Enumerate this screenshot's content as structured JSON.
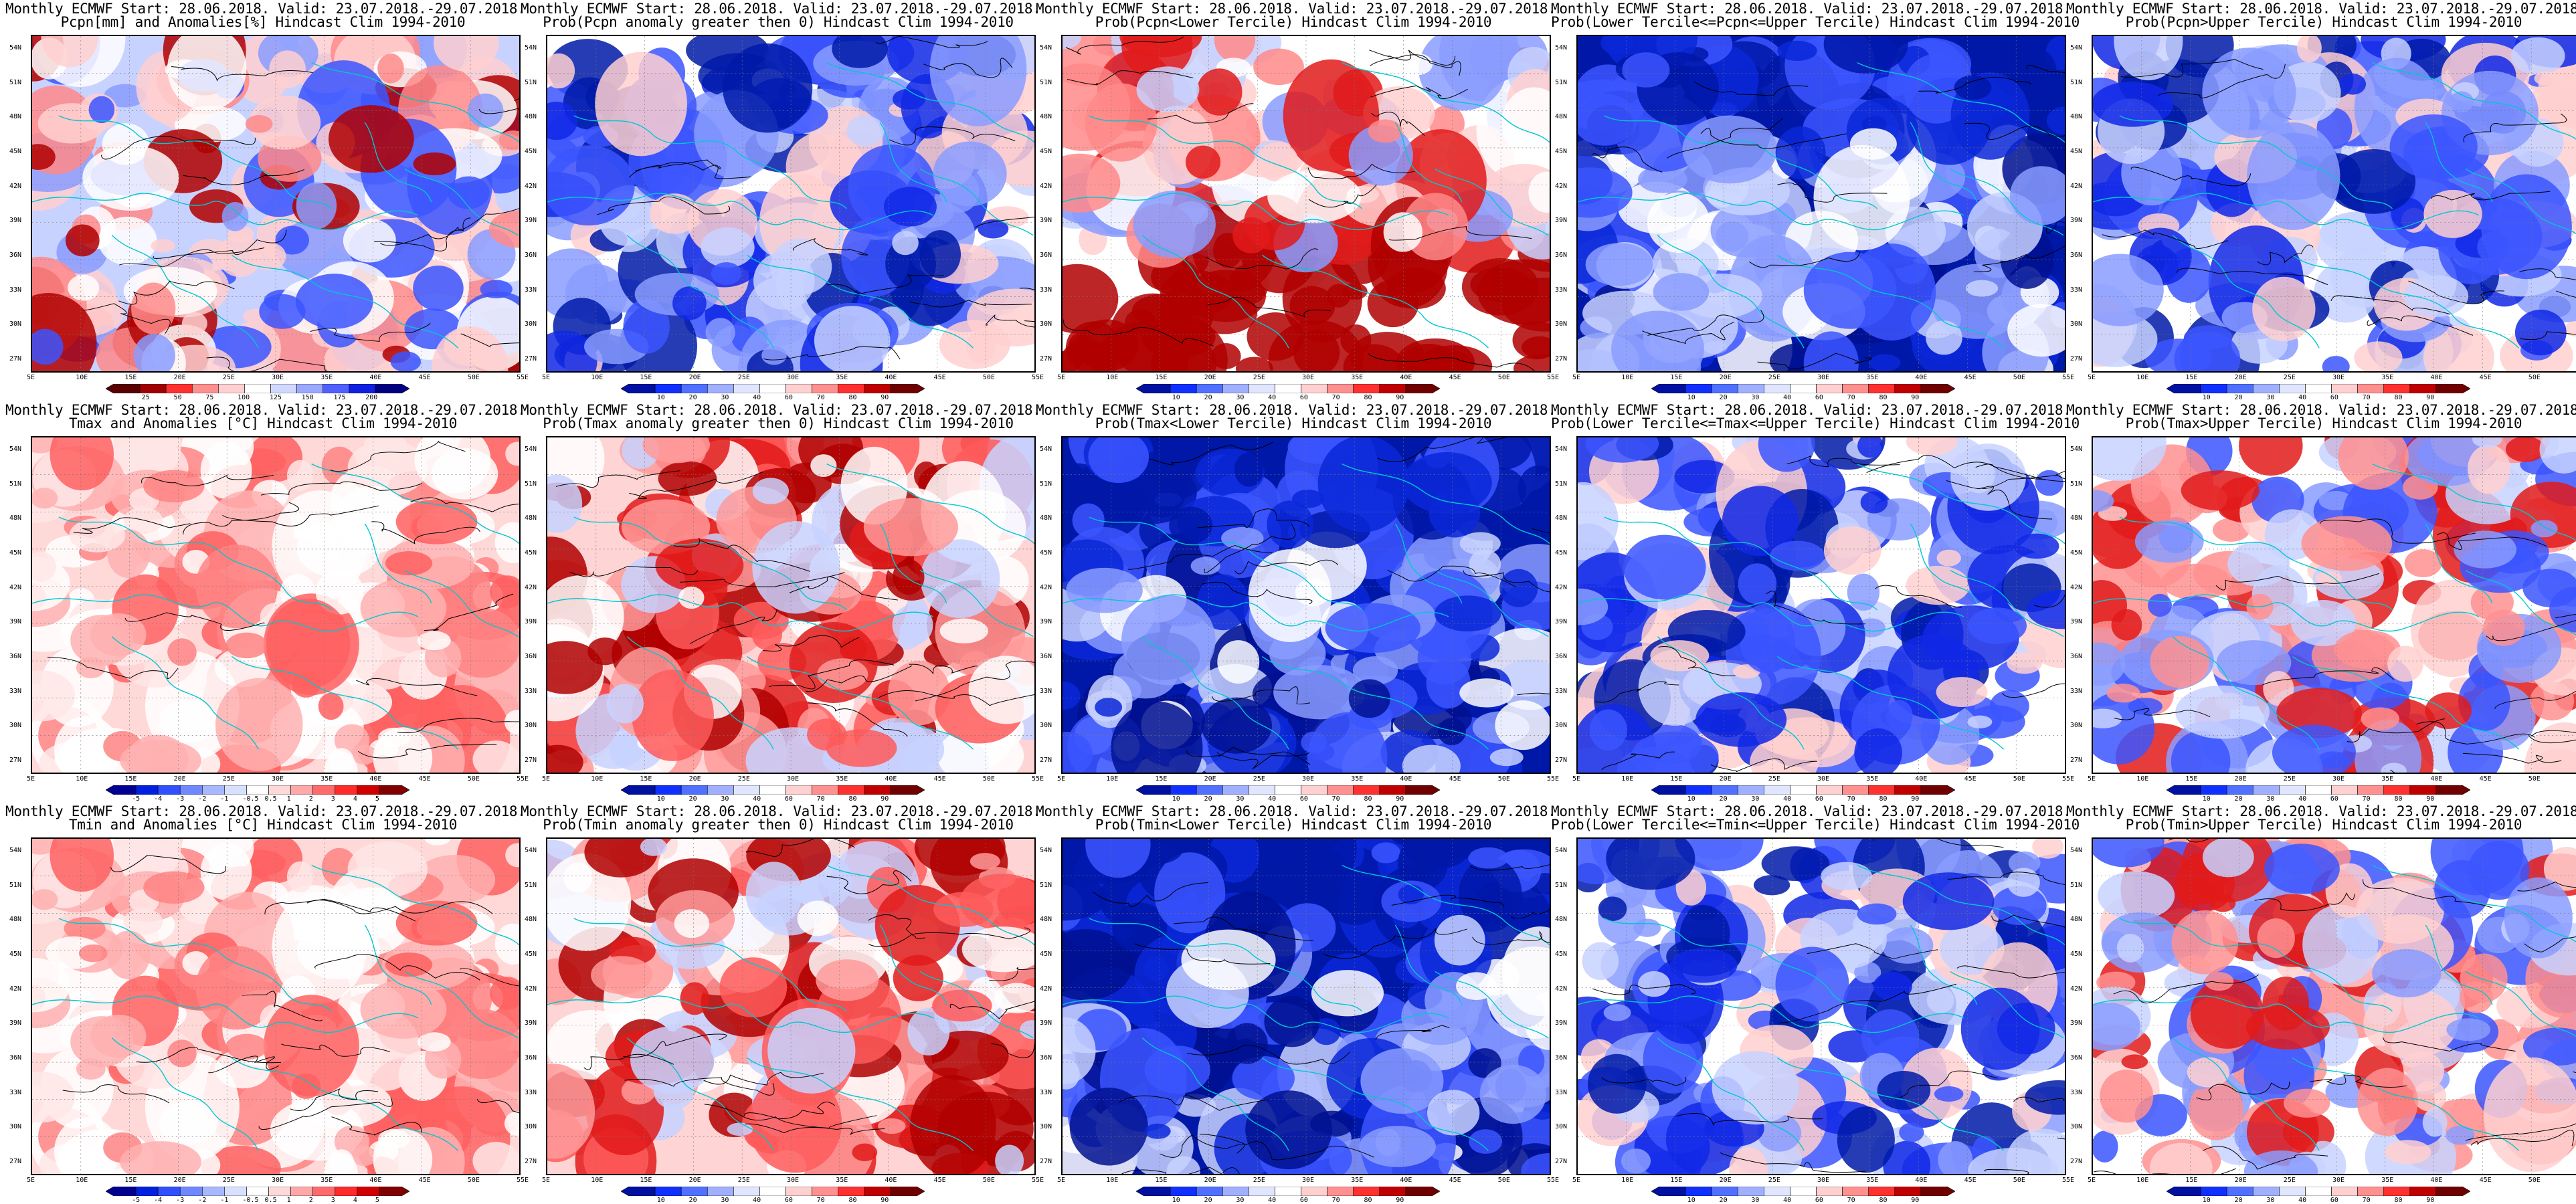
{
  "title_line1": {
    "pcpn": "Monthly ECMWF Start: 28.06.2018. Valid: 23.07.2018.-29.07.2018.",
    "tmax": "Monthly ECMWF Start: 28.06.2018. Valid: 23.07.2018.-29.07.2018.",
    "tmin": "Monthly ECMWF Start: 28.06.2018. Valid: 23.07.2018.-29.07.2018."
  },
  "panels": [
    {
      "title2": "Pcpn[mm] and Anomalies[%] Hindcast Clim 1994-2010",
      "base": "mixed",
      "scale": "pcpn"
    },
    {
      "title2": "Prob(Pcpn anomaly greater then 0) Hindcast Clim 1994-2010",
      "base": "blue",
      "scale": "prob"
    },
    {
      "title2": "Prob(Pcpn<Lower Tercile) Hindcast Clim 1994-2010",
      "base": "redsouth",
      "scale": "prob"
    },
    {
      "title2": "Prob(Lower Tercile<=Pcpn<=Upper Tercile) Hindcast Clim 1994-2010",
      "base": "deepblue",
      "scale": "prob"
    },
    {
      "title2": "Prob(Pcpn>Upper Tercile) Hindcast Clim 1994-2010",
      "base": "blue",
      "scale": "prob"
    },
    {
      "title2": "Tmax and Anomalies [°C] Hindcast Clim 1994-2010",
      "base": "redlight",
      "scale": "temp"
    },
    {
      "title2": "Prob(Tmax anomaly greater then 0) Hindcast Clim 1994-2010",
      "base": "red",
      "scale": "prob"
    },
    {
      "title2": "Prob(Tmax<Lower Tercile) Hindcast Clim 1994-2010",
      "base": "deepblue",
      "scale": "prob"
    },
    {
      "title2": "Prob(Lower Tercile<=Tmax<=Upper Tercile) Hindcast Clim 1994-2010",
      "base": "blue",
      "scale": "prob"
    },
    {
      "title2": "Prob(Tmax>Upper Tercile) Hindcast Clim 1994-2010",
      "base": "redblue",
      "scale": "prob"
    },
    {
      "title2": "Tmin and Anomalies [°C] Hindcast Clim 1994-2010",
      "base": "redlight",
      "scale": "temp"
    },
    {
      "title2": "Prob(Tmin anomaly greater then 0) Hindcast Clim 1994-2010",
      "base": "red",
      "scale": "prob"
    },
    {
      "title2": "Prob(Tmin<Lower Tercile) Hindcast Clim 1994-2010",
      "base": "deepblue",
      "scale": "prob"
    },
    {
      "title2": "Prob(Lower Tercile<=Tmin<=Upper Tercile) Hindcast Clim 1994-2010",
      "base": "blue",
      "scale": "prob"
    },
    {
      "title2": "Prob(Tmin>Upper Tercile) Hindcast Clim 1994-2010",
      "base": "redblue",
      "scale": "prob"
    }
  ],
  "lat_labels": [
    "54N",
    "51N",
    "48N",
    "45N",
    "42N",
    "39N",
    "36N",
    "33N",
    "30N",
    "27N"
  ],
  "lon_labels": [
    "5E",
    "10E",
    "15E",
    "20E",
    "25E",
    "30E",
    "35E",
    "40E",
    "45E",
    "50E",
    "55E"
  ],
  "colorbars": {
    "pcpn": {
      "labels": [
        "25",
        "50",
        "75",
        "100",
        "125",
        "150",
        "175",
        "200"
      ],
      "colors": [
        "#5a0000",
        "#a00000",
        "#ff3030",
        "#ff9090",
        "#ffd0d0",
        "#ffffff",
        "#d0d8ff",
        "#9aa8ff",
        "#5060ff",
        "#1020e0",
        "#000080"
      ]
    },
    "prob": {
      "labels": [
        "10",
        "20",
        "30",
        "40",
        "60",
        "70",
        "80",
        "90"
      ],
      "colors": [
        "#0010a0",
        "#1030ff",
        "#5070ff",
        "#a0b0ff",
        "#e0e6ff",
        "#ffffff",
        "#ffd0d0",
        "#ff9090",
        "#ff3030",
        "#c00000",
        "#700000"
      ]
    },
    "temp": {
      "labels": [
        "-5",
        "-4",
        "-3",
        "-2",
        "-1",
        "-0.5",
        "0.5",
        "1",
        "2",
        "3",
        "4",
        "5"
      ],
      "colors": [
        "#000090",
        "#0020e0",
        "#3050ff",
        "#7088ff",
        "#a8b8ff",
        "#d8e0ff",
        "#ffffff",
        "#ffd8d8",
        "#ffa8a8",
        "#ff6a6a",
        "#ff2a2a",
        "#d00000",
        "#800000"
      ]
    }
  },
  "colors": {
    "coast": "#00c8d0",
    "contour": "#000000",
    "frame": "#000000"
  }
}
